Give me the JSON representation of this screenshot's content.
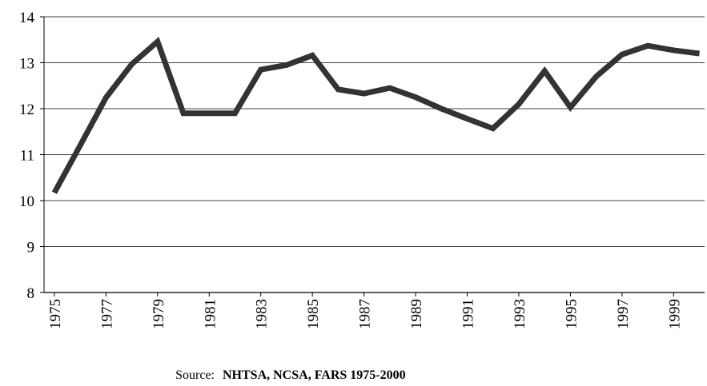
{
  "chart_data": {
    "type": "line",
    "x": [
      1975,
      1976,
      1977,
      1978,
      1979,
      1980,
      1981,
      1982,
      1983,
      1984,
      1985,
      1986,
      1987,
      1988,
      1989,
      1990,
      1991,
      1992,
      1993,
      1994,
      1995,
      1996,
      1997,
      1998,
      1999,
      2000
    ],
    "series": [
      {
        "color": "#333333",
        "values": [
          10.17,
          11.2,
          12.24,
          12.97,
          13.46,
          11.9,
          11.9,
          11.9,
          12.85,
          12.95,
          13.16,
          12.42,
          12.33,
          12.45,
          12.25,
          12.0,
          11.78,
          11.57,
          12.1,
          12.82,
          12.03,
          12.7,
          13.18,
          13.37,
          13.27,
          13.2
        ]
      }
    ],
    "xlim": [
      1974.6,
      2000.2
    ],
    "xticks": [
      1975,
      1977,
      1979,
      1981,
      1983,
      1985,
      1987,
      1989,
      1991,
      1993,
      1995,
      1997,
      1999
    ],
    "ylim": [
      8,
      14
    ],
    "yticks": [
      8,
      9,
      10,
      11,
      12,
      13,
      14
    ],
    "grid": true,
    "source_label": "Source:",
    "source": "NHTSA, NCSA, FARS 1975-2000"
  }
}
